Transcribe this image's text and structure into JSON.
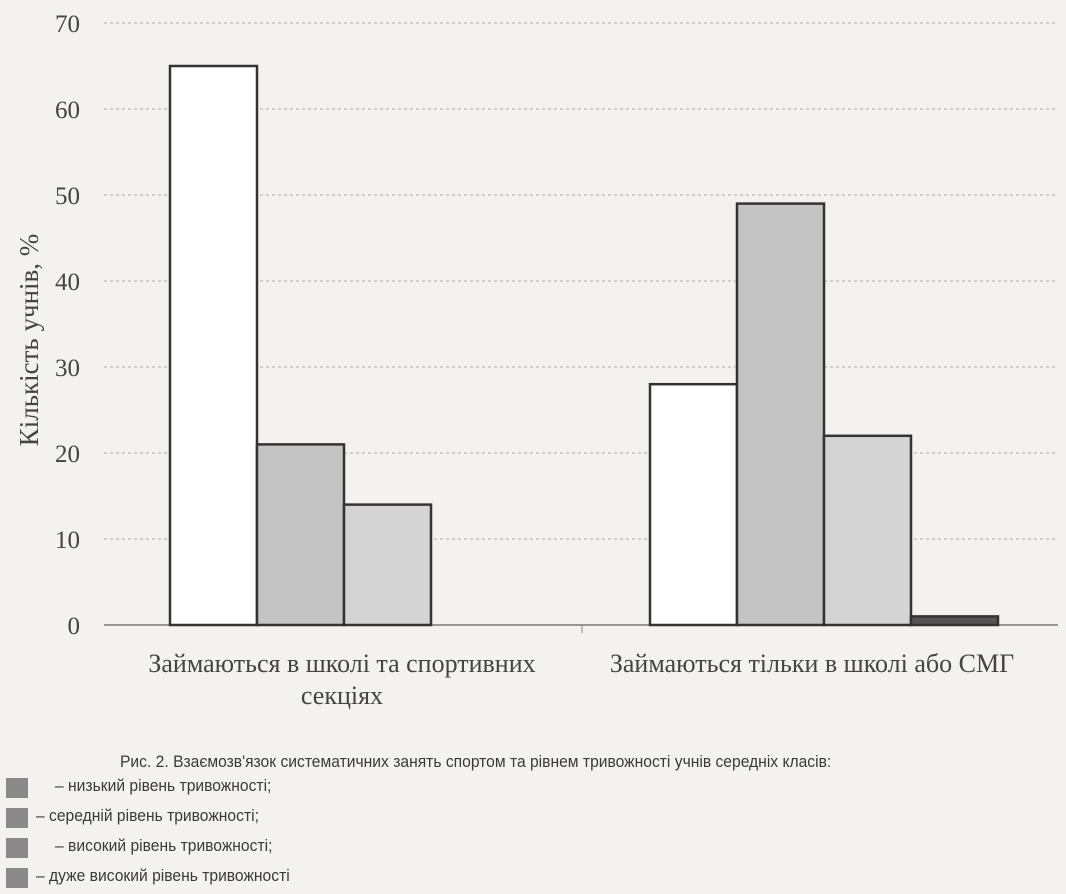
{
  "chart_data": {
    "type": "bar",
    "ylabel": "Кількість учнів, %",
    "ylim": [
      0,
      70
    ],
    "yticks": [
      0,
      10,
      20,
      30,
      40,
      50,
      60,
      70
    ],
    "grid": true,
    "categories": [
      [
        "Займаються в школі та спортивних",
        "секціях"
      ],
      [
        "Займаються тільки в школі або СМГ"
      ]
    ],
    "series": [
      {
        "name": "– низький рівень тривожності;",
        "values": [
          65,
          28
        ],
        "color": "#ffffff"
      },
      {
        "name": "– середній рівень тривожності;",
        "values": [
          21,
          49
        ],
        "color": "#c4c4c4"
      },
      {
        "name": "– високий рівень тривожності;",
        "values": [
          14,
          22
        ],
        "color": "#d4d4d4"
      },
      {
        "name": "– дуже високий рівень тривожності",
        "values": [
          0,
          1
        ],
        "color": "#555555"
      }
    ]
  },
  "caption": "Рис. 2. Взаємозв'язок систематичних занять спортом та рівнем тривожності учнів середніх класів:",
  "legend": [
    "– низький рівень тривожності;",
    "– середній рівень тривожності;",
    "– високий рівень тривожності;",
    "– дуже високий рівень тривожності"
  ]
}
